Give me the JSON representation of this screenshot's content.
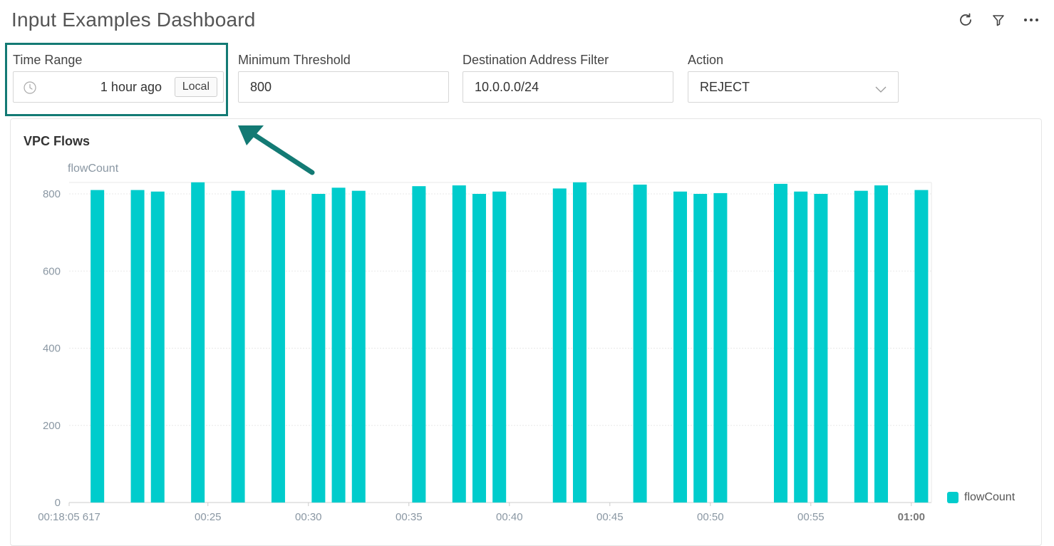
{
  "dashboard": {
    "title": "Input Examples Dashboard"
  },
  "toolbar": {
    "icons": [
      "refresh-icon",
      "filter-icon",
      "more-icon"
    ]
  },
  "inputs": {
    "time_range": {
      "label": "Time Range",
      "value": "1 hour ago",
      "zone_button": "Local"
    },
    "min_threshold": {
      "label": "Minimum Threshold",
      "value": "800"
    },
    "dest_filter": {
      "label": "Destination Address Filter",
      "value": "10.0.0.0/24"
    },
    "action": {
      "label": "Action",
      "value": "REJECT"
    }
  },
  "panel": {
    "title": "VPC Flows"
  },
  "colors": {
    "bar": "#00cccc",
    "highlight": "#137a74",
    "grid": "#e8e8e8"
  },
  "chart_data": {
    "type": "bar",
    "ylabel": "flowCount",
    "ylim": [
      0,
      800
    ],
    "yticks": [
      0,
      200,
      400,
      600,
      800
    ],
    "xlim": [
      "00:18:05.617",
      "01:01:00"
    ],
    "xticks": [
      {
        "t": "00:18:05.617",
        "label": "00:18:05 617"
      },
      {
        "t": "00:25:00",
        "label": "00:25"
      },
      {
        "t": "00:30:00",
        "label": "00:30"
      },
      {
        "t": "00:35:00",
        "label": "00:35"
      },
      {
        "t": "00:40:00",
        "label": "00:40"
      },
      {
        "t": "00:45:00",
        "label": "00:45"
      },
      {
        "t": "00:50:00",
        "label": "00:50"
      },
      {
        "t": "00:55:00",
        "label": "00:55"
      },
      {
        "t": "01:00:00",
        "label": "01:00",
        "bold": true
      }
    ],
    "series": [
      {
        "name": "flowCount",
        "points": [
          {
            "x": "00:19:30",
            "y": 810
          },
          {
            "x": "00:21:30",
            "y": 810
          },
          {
            "x": "00:22:30",
            "y": 806
          },
          {
            "x": "00:24:30",
            "y": 830
          },
          {
            "x": "00:26:30",
            "y": 808
          },
          {
            "x": "00:28:30",
            "y": 810
          },
          {
            "x": "00:30:30",
            "y": 800
          },
          {
            "x": "00:31:30",
            "y": 816
          },
          {
            "x": "00:32:30",
            "y": 808
          },
          {
            "x": "00:35:30",
            "y": 820
          },
          {
            "x": "00:37:30",
            "y": 822
          },
          {
            "x": "00:38:30",
            "y": 800
          },
          {
            "x": "00:39:30",
            "y": 806
          },
          {
            "x": "00:42:30",
            "y": 814
          },
          {
            "x": "00:43:30",
            "y": 830
          },
          {
            "x": "00:46:30",
            "y": 824
          },
          {
            "x": "00:48:30",
            "y": 806
          },
          {
            "x": "00:49:30",
            "y": 800
          },
          {
            "x": "00:50:30",
            "y": 802
          },
          {
            "x": "00:53:30",
            "y": 826
          },
          {
            "x": "00:54:30",
            "y": 806
          },
          {
            "x": "00:55:30",
            "y": 800
          },
          {
            "x": "00:57:30",
            "y": 808
          },
          {
            "x": "00:58:30",
            "y": 822
          },
          {
            "x": "01:00:30",
            "y": 810
          }
        ]
      }
    ],
    "legend": "right"
  }
}
